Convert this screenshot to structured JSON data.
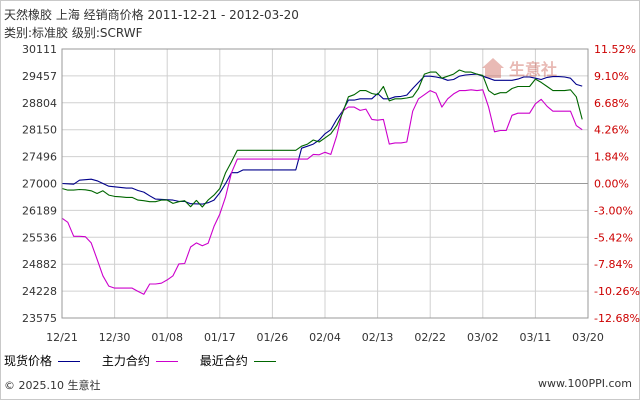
{
  "header": {
    "title": "天然橡胶 上海 经销商价格 2011-12-21 - 2012-03-20",
    "subtitle": "类别:标准胶 级别:SCRWF"
  },
  "footer": {
    "copyright": "© 2025.10 生意社",
    "url": "www.100PPI.com"
  },
  "watermark": {
    "text": "生意社",
    "icon": "house-logo-icon",
    "color": "#c0392b"
  },
  "colors": {
    "spot": "#00008b",
    "main": "#cc00cc",
    "recent": "#006600",
    "grid": "#d0d0d0",
    "zero_line": "#999999",
    "left_axis_text": "#333333",
    "right_axis_text": "#cc0000"
  },
  "chart_data": {
    "type": "line",
    "x_ticks": [
      "12/21",
      "12/30",
      "01/08",
      "01/17",
      "01/26",
      "02/04",
      "02/13",
      "02/22",
      "03/02",
      "03/11",
      "03/20"
    ],
    "y_left_ticks": [
      "30111",
      "29457",
      "28804",
      "28150",
      "27496",
      "27000",
      "26189",
      "25536",
      "24882",
      "24228",
      "23575"
    ],
    "y_right_ticks": [
      "11.52%",
      "9.10%",
      "6.68%",
      "4.26%",
      "1.84%",
      "0.00%",
      "-3.00%",
      "-5.42%",
      "-7.84%",
      "-10.26%",
      "-12.68%"
    ],
    "ylim": [
      23575,
      30111
    ],
    "xlim": [
      0,
      90
    ],
    "grid": true,
    "legend": "bottom-left",
    "series": [
      {
        "name": "现货价格",
        "color_key": "spot",
        "values": [
          [
            0,
            27000
          ],
          [
            2,
            26980
          ],
          [
            3,
            27060
          ],
          [
            5,
            27080
          ],
          [
            6,
            27050
          ],
          [
            8,
            26920
          ],
          [
            9,
            26900
          ],
          [
            11,
            26860
          ],
          [
            12,
            26860
          ],
          [
            13,
            26790
          ],
          [
            14,
            26740
          ],
          [
            15,
            26630
          ],
          [
            16,
            26530
          ],
          [
            19,
            26500
          ],
          [
            20,
            26460
          ],
          [
            21,
            26460
          ],
          [
            22,
            26390
          ],
          [
            24,
            26380
          ],
          [
            25,
            26420
          ],
          [
            26,
            26500
          ],
          [
            27,
            26720
          ],
          [
            28,
            27000
          ],
          [
            29,
            27200
          ],
          [
            30,
            27200
          ],
          [
            31,
            27250
          ],
          [
            32,
            27250
          ],
          [
            36,
            27250
          ],
          [
            37,
            27250
          ],
          [
            40,
            27250
          ],
          [
            41,
            27700
          ],
          [
            42,
            27750
          ],
          [
            43,
            27800
          ],
          [
            44,
            27900
          ],
          [
            45,
            28050
          ],
          [
            46,
            28150
          ],
          [
            47,
            28400
          ],
          [
            48,
            28600
          ],
          [
            49,
            28870
          ],
          [
            50,
            28870
          ],
          [
            51,
            28900
          ],
          [
            53,
            28900
          ],
          [
            54,
            29030
          ],
          [
            55,
            28900
          ],
          [
            56,
            28900
          ],
          [
            57,
            28950
          ],
          [
            58,
            28960
          ],
          [
            59,
            28990
          ],
          [
            60,
            29150
          ],
          [
            61,
            29300
          ],
          [
            62,
            29450
          ],
          [
            63,
            29450
          ],
          [
            64,
            29430
          ],
          [
            65,
            29400
          ],
          [
            66,
            29350
          ],
          [
            67,
            29370
          ],
          [
            68,
            29450
          ],
          [
            69,
            29480
          ],
          [
            70,
            29490
          ],
          [
            71,
            29500
          ],
          [
            72,
            29450
          ],
          [
            73,
            29400
          ],
          [
            74,
            29350
          ],
          [
            75,
            29350
          ],
          [
            76,
            29350
          ],
          [
            77,
            29350
          ],
          [
            78,
            29380
          ],
          [
            79,
            29430
          ],
          [
            80,
            29430
          ],
          [
            81,
            29400
          ],
          [
            82,
            29370
          ],
          [
            83,
            29420
          ],
          [
            84,
            29440
          ],
          [
            85,
            29440
          ],
          [
            86,
            29430
          ],
          [
            87,
            29400
          ],
          [
            88,
            29250
          ],
          [
            89,
            29210
          ]
        ]
      },
      {
        "name": "主力合约",
        "color_key": "main",
        "values": [
          [
            0,
            26000
          ],
          [
            1,
            25900
          ],
          [
            2,
            25560
          ],
          [
            3,
            25560
          ],
          [
            4,
            25550
          ],
          [
            5,
            25400
          ],
          [
            6,
            25000
          ],
          [
            7,
            24600
          ],
          [
            8,
            24350
          ],
          [
            9,
            24300
          ],
          [
            10,
            24300
          ],
          [
            11,
            24300
          ],
          [
            12,
            24300
          ],
          [
            13,
            24220
          ],
          [
            14,
            24150
          ],
          [
            15,
            24400
          ],
          [
            16,
            24400
          ],
          [
            17,
            24420
          ],
          [
            18,
            24500
          ],
          [
            19,
            24600
          ],
          [
            20,
            24890
          ],
          [
            21,
            24900
          ],
          [
            22,
            25300
          ],
          [
            23,
            25400
          ],
          [
            24,
            25330
          ],
          [
            25,
            25390
          ],
          [
            26,
            25800
          ],
          [
            27,
            26100
          ],
          [
            28,
            26600
          ],
          [
            29,
            27200
          ],
          [
            30,
            27450
          ],
          [
            31,
            27450
          ],
          [
            35,
            27450
          ],
          [
            40,
            27450
          ],
          [
            41,
            27450
          ],
          [
            42,
            27450
          ],
          [
            43,
            27550
          ],
          [
            44,
            27540
          ],
          [
            45,
            27600
          ],
          [
            46,
            27550
          ],
          [
            47,
            28000
          ],
          [
            48,
            28600
          ],
          [
            49,
            28700
          ],
          [
            50,
            28700
          ],
          [
            51,
            28620
          ],
          [
            52,
            28650
          ],
          [
            53,
            28400
          ],
          [
            54,
            28380
          ],
          [
            55,
            28400
          ],
          [
            56,
            27800
          ],
          [
            57,
            27830
          ],
          [
            58,
            27830
          ],
          [
            59,
            27850
          ],
          [
            60,
            28600
          ],
          [
            61,
            28900
          ],
          [
            62,
            29000
          ],
          [
            63,
            29100
          ],
          [
            64,
            29040
          ],
          [
            65,
            28700
          ],
          [
            66,
            28900
          ],
          [
            67,
            29020
          ],
          [
            68,
            29100
          ],
          [
            69,
            29100
          ],
          [
            70,
            29120
          ],
          [
            71,
            29100
          ],
          [
            72,
            29120
          ],
          [
            73,
            28700
          ],
          [
            74,
            28100
          ],
          [
            75,
            28130
          ],
          [
            76,
            28130
          ],
          [
            77,
            28500
          ],
          [
            78,
            28550
          ],
          [
            79,
            28550
          ],
          [
            80,
            28550
          ],
          [
            81,
            28780
          ],
          [
            82,
            28890
          ],
          [
            83,
            28720
          ],
          [
            84,
            28600
          ],
          [
            85,
            28600
          ],
          [
            86,
            28600
          ],
          [
            87,
            28600
          ],
          [
            88,
            28250
          ],
          [
            89,
            28150
          ]
        ]
      },
      {
        "name": "最近合约",
        "color_key": "recent",
        "values": [
          [
            0,
            26850
          ],
          [
            1,
            26800
          ],
          [
            2,
            26800
          ],
          [
            3,
            26820
          ],
          [
            4,
            26810
          ],
          [
            5,
            26780
          ],
          [
            6,
            26700
          ],
          [
            7,
            26780
          ],
          [
            8,
            26650
          ],
          [
            9,
            26610
          ],
          [
            10,
            26600
          ],
          [
            11,
            26580
          ],
          [
            12,
            26580
          ],
          [
            13,
            26500
          ],
          [
            14,
            26480
          ],
          [
            15,
            26450
          ],
          [
            16,
            26450
          ],
          [
            17,
            26500
          ],
          [
            18,
            26500
          ],
          [
            19,
            26400
          ],
          [
            20,
            26450
          ],
          [
            21,
            26480
          ],
          [
            22,
            26300
          ],
          [
            23,
            26490
          ],
          [
            24,
            26290
          ],
          [
            25,
            26500
          ],
          [
            26,
            26650
          ],
          [
            27,
            26850
          ],
          [
            28,
            27200
          ],
          [
            29,
            27400
          ],
          [
            30,
            27650
          ],
          [
            31,
            27650
          ],
          [
            35,
            27650
          ],
          [
            40,
            27650
          ],
          [
            41,
            27750
          ],
          [
            42,
            27800
          ],
          [
            43,
            27900
          ],
          [
            44,
            27850
          ],
          [
            45,
            27950
          ],
          [
            46,
            28050
          ],
          [
            47,
            28250
          ],
          [
            48,
            28550
          ],
          [
            49,
            28950
          ],
          [
            50,
            29000
          ],
          [
            51,
            29100
          ],
          [
            52,
            29100
          ],
          [
            53,
            29030
          ],
          [
            54,
            29000
          ],
          [
            55,
            29200
          ],
          [
            56,
            28850
          ],
          [
            57,
            28900
          ],
          [
            58,
            28900
          ],
          [
            59,
            28920
          ],
          [
            60,
            28950
          ],
          [
            61,
            29150
          ],
          [
            62,
            29500
          ],
          [
            63,
            29550
          ],
          [
            64,
            29550
          ],
          [
            65,
            29400
          ],
          [
            66,
            29450
          ],
          [
            67,
            29500
          ],
          [
            68,
            29600
          ],
          [
            69,
            29550
          ],
          [
            70,
            29550
          ],
          [
            71,
            29500
          ],
          [
            72,
            29470
          ],
          [
            73,
            29100
          ],
          [
            74,
            29000
          ],
          [
            75,
            29050
          ],
          [
            76,
            29050
          ],
          [
            77,
            29150
          ],
          [
            78,
            29200
          ],
          [
            79,
            29200
          ],
          [
            80,
            29200
          ],
          [
            81,
            29380
          ],
          [
            82,
            29300
          ],
          [
            83,
            29200
          ],
          [
            84,
            29100
          ],
          [
            85,
            29100
          ],
          [
            86,
            29100
          ],
          [
            87,
            29120
          ],
          [
            88,
            28950
          ],
          [
            89,
            28400
          ]
        ]
      }
    ]
  }
}
